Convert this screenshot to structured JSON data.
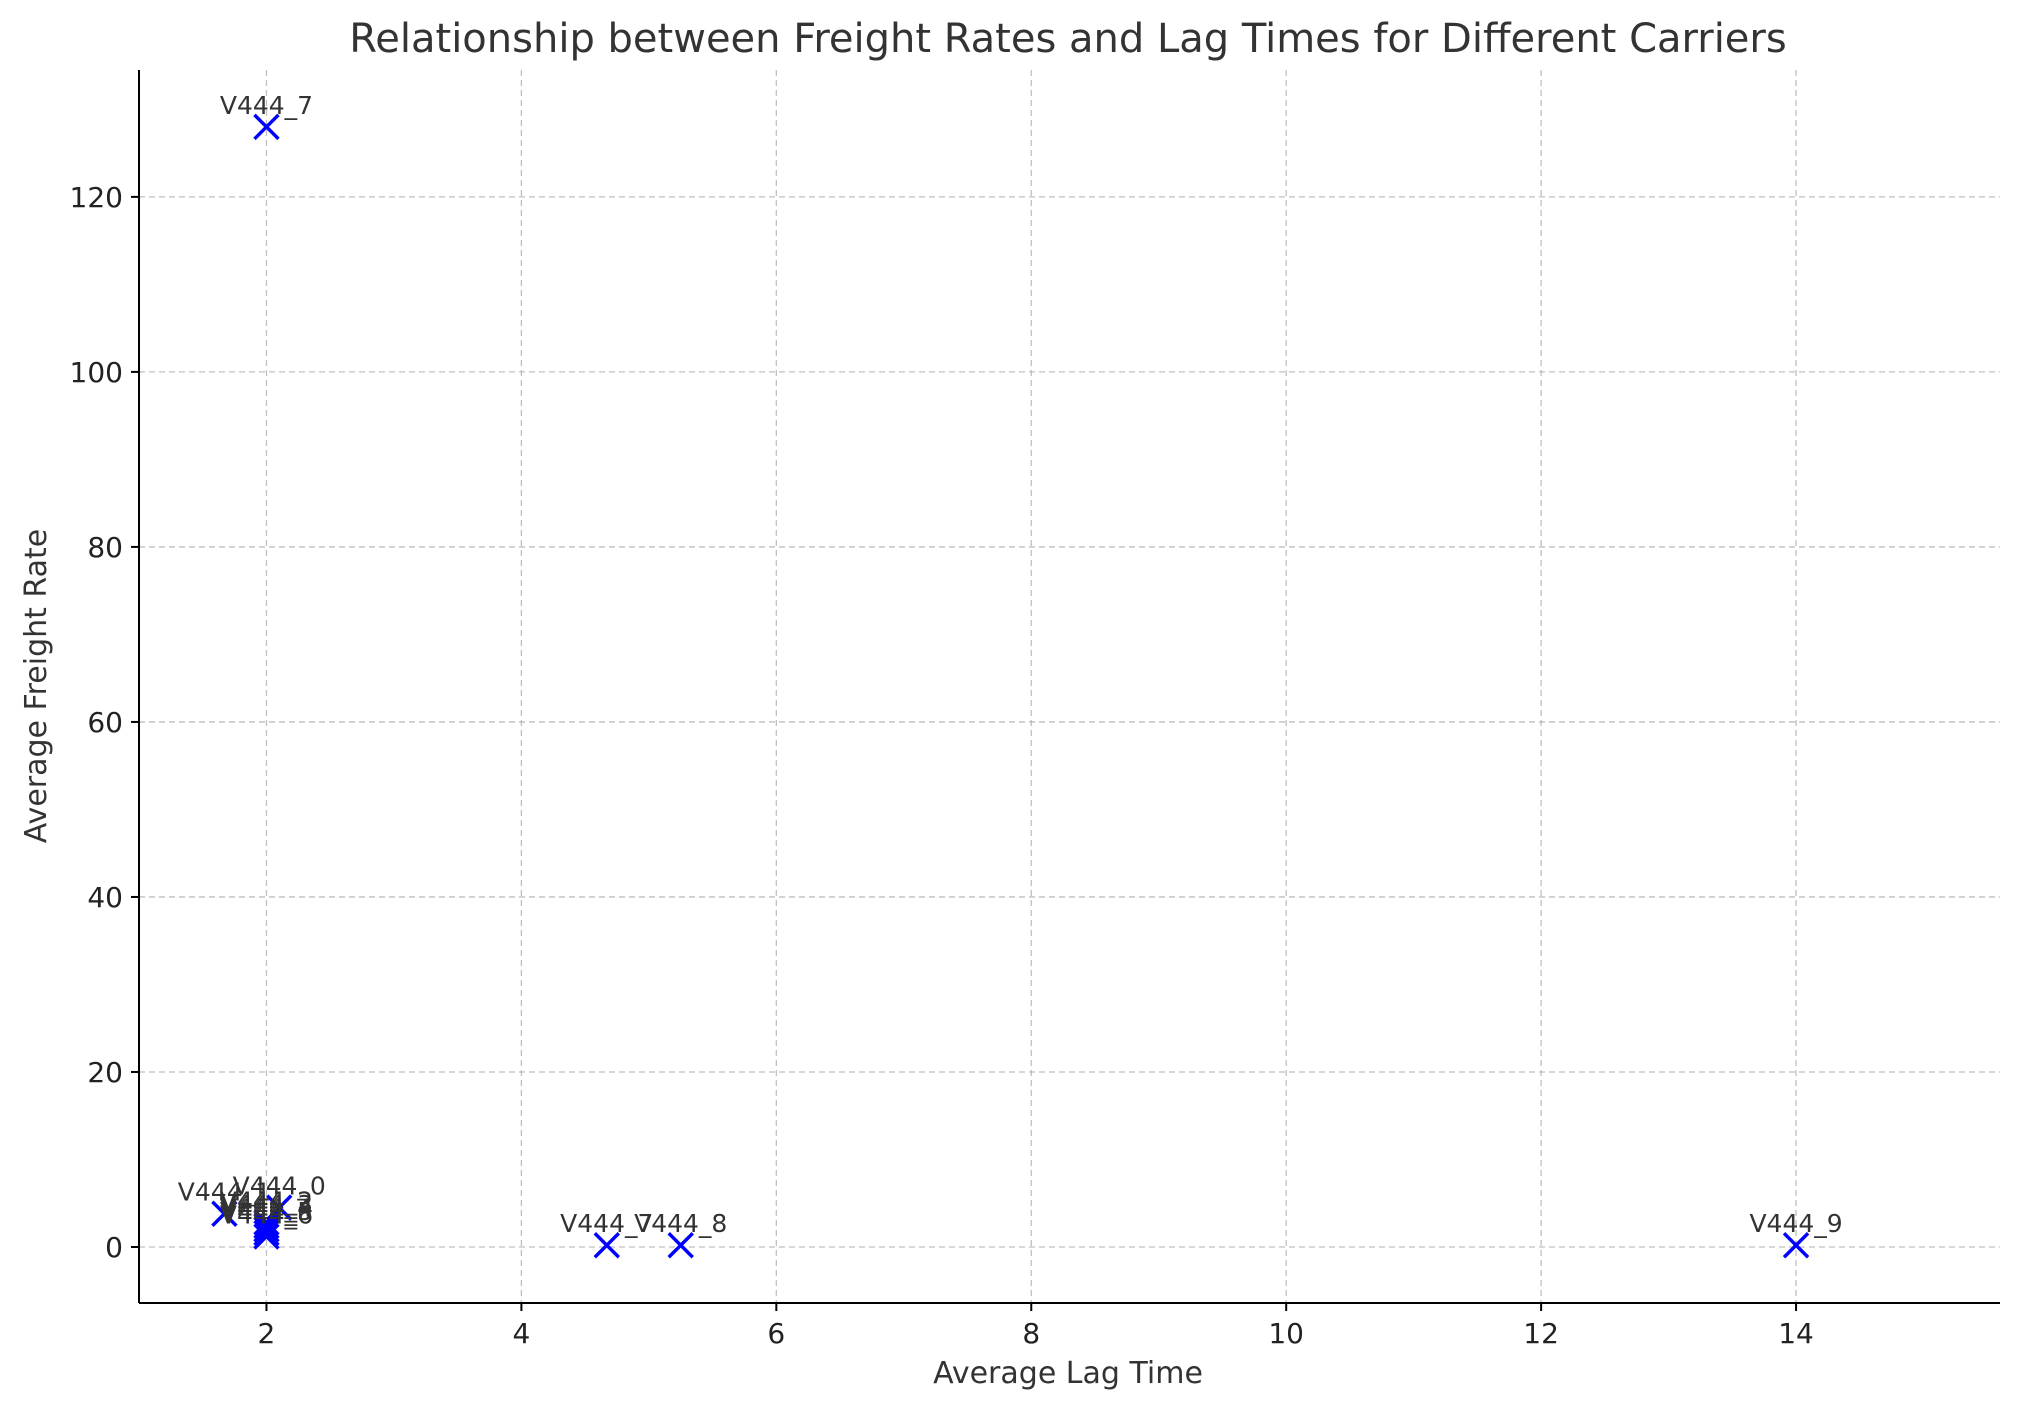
{
  "chart_data": {
    "type": "scatter",
    "title": "Relationship between Freight Rates and Lag Times for Different Carriers",
    "xlabel": "Average Lag Time",
    "ylabel": "Average Freight Rate",
    "xlim": [
      1.0,
      15.6
    ],
    "ylim": [
      -6.4,
      134.5
    ],
    "xticks": [
      2,
      4,
      6,
      8,
      10,
      12,
      14
    ],
    "yticks": [
      0,
      20,
      40,
      60,
      80,
      100,
      120
    ],
    "grid": true,
    "marker": "x",
    "marker_color": "#0000ff",
    "points": [
      {
        "label": "V444_7",
        "x": 2.0,
        "y": 128.0
      },
      {
        "label": "V444_0",
        "x": 2.1,
        "y": 4.5
      },
      {
        "label": "V444_1",
        "x": 1.67,
        "y": 3.8
      },
      {
        "label": "V444_2",
        "x": 2.0,
        "y": 2.8
      },
      {
        "label": "V444_3",
        "x": 2.0,
        "y": 2.4
      },
      {
        "label": "V444_4",
        "x": 2.0,
        "y": 2.0
      },
      {
        "label": "V444_5",
        "x": 2.0,
        "y": 1.6
      },
      {
        "label": "V444_6",
        "x": 2.0,
        "y": 1.2
      },
      {
        "label": "V444_7",
        "x": 4.67,
        "y": 0.2
      },
      {
        "label": "V444_8",
        "x": 5.25,
        "y": 0.2
      },
      {
        "label": "V444_9",
        "x": 14.0,
        "y": 0.2
      }
    ]
  }
}
